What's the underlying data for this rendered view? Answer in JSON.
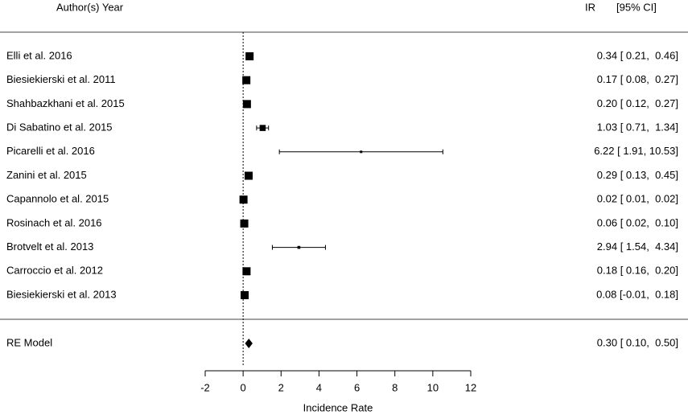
{
  "chart_data": {
    "type": "forest",
    "study_header": "Author(s) Year",
    "estimate_header": "IR",
    "ci_header": "[95% CI]",
    "categories": [
      "Elli et al. 2016",
      "Biesiekierski et al. 2011",
      "Shahbazkhani et al. 2015",
      "Di Sabatino et al. 2015",
      "Picarelli et al. 2016",
      "Zanini et al. 2015",
      "Capannolo et al. 2015",
      "Rosinach et al. 2016",
      "Brotvelt et al. 2013",
      "Carroccio et al. 2012",
      "Biesiekierski et al. 2013"
    ],
    "values": [
      0.34,
      0.17,
      0.2,
      1.03,
      6.22,
      0.29,
      0.02,
      0.06,
      2.94,
      0.18,
      0.08
    ],
    "lower": [
      0.21,
      0.08,
      0.12,
      0.71,
      1.91,
      0.13,
      0.01,
      0.02,
      1.54,
      0.16,
      -0.01
    ],
    "upper": [
      0.46,
      0.27,
      0.27,
      1.34,
      10.53,
      0.45,
      0.02,
      0.1,
      4.34,
      0.2,
      0.18
    ],
    "value_labels": [
      "0.34 [ 0.21,  0.46]",
      "0.17 [ 0.08,  0.27]",
      "0.20 [ 0.12,  0.27]",
      "1.03 [ 0.71,  1.34]",
      "6.22 [ 1.91, 10.53]",
      "0.29 [ 0.13,  0.45]",
      "0.02 [ 0.01,  0.02]",
      "0.06 [ 0.02,  0.10]",
      "2.94 [ 1.54,  4.34]",
      "0.18 [ 0.16,  0.20]",
      "0.08 [-0.01,  0.18]"
    ],
    "summary": {
      "label": "RE Model",
      "value": 0.3,
      "lower": 0.1,
      "upper": 0.5,
      "value_label": "0.30 [ 0.10,  0.50]"
    },
    "xlabel": "Incidence Rate",
    "xlim": [
      -2,
      12
    ],
    "xticks": [
      -2,
      0,
      2,
      4,
      6,
      8,
      10,
      12
    ],
    "refline": 0
  }
}
